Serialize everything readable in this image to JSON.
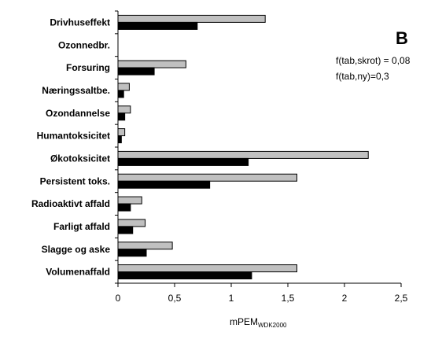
{
  "chart_data": {
    "type": "bar",
    "orientation": "horizontal",
    "panel_letter": "B",
    "annotations": [
      "f(tab,skrot) = 0,08",
      "f(tab,ny)=0,3"
    ],
    "categories": [
      "Drivhuseffekt",
      "Ozonnedbr.",
      "Forsuring",
      "Næringssaltbe.",
      "Ozondannelse",
      "Humantoksicitet",
      "Økotoksicitet",
      "Persistent toks.",
      "Radioaktivt affald",
      "Farligt affald",
      "Slagge og aske",
      "Volumenaffald"
    ],
    "series": [
      {
        "values": [
          1.3,
          0.0,
          0.6,
          0.1,
          0.11,
          0.06,
          2.21,
          1.58,
          0.21,
          0.24,
          0.48,
          1.58
        ],
        "color": "#c0c0c0"
      },
      {
        "values": [
          0.7,
          0.0,
          0.32,
          0.05,
          0.06,
          0.03,
          1.15,
          0.81,
          0.11,
          0.13,
          0.25,
          1.18
        ],
        "color": "#000000"
      }
    ],
    "xlabel_main": "mPEM",
    "xlabel_sub": "WDK2000",
    "xlim": [
      0,
      2.5
    ],
    "xticks": [
      "0",
      "0,5",
      "1",
      "1,5",
      "2",
      "2,5"
    ],
    "grid": false
  }
}
